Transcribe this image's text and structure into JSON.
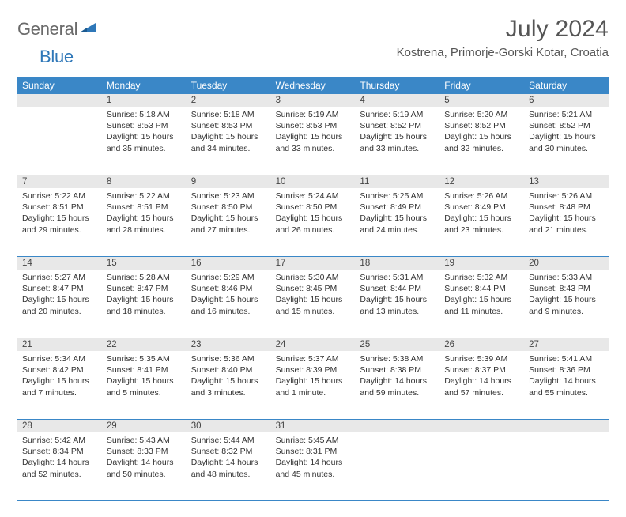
{
  "logo": {
    "textGeneral": "General",
    "textBlue": "Blue"
  },
  "title": "July 2024",
  "location": "Kostrena, Primorje-Gorski Kotar, Croatia",
  "colors": {
    "headerBg": "#3a87c7",
    "headerText": "#ffffff",
    "daynumBg": "#e8e8e8",
    "bodyText": "#333333",
    "titleText": "#555555",
    "logoGray": "#6a6a6a",
    "logoBlue": "#2e77b8",
    "weekBorder": "#3a87c7"
  },
  "dayNames": [
    "Sunday",
    "Monday",
    "Tuesday",
    "Wednesday",
    "Thursday",
    "Friday",
    "Saturday"
  ],
  "weeks": [
    {
      "nums": [
        "",
        "1",
        "2",
        "3",
        "4",
        "5",
        "6"
      ],
      "cells": [
        {
          "sunrise": "",
          "sunset": "",
          "daylight1": "",
          "daylight2": ""
        },
        {
          "sunrise": "Sunrise: 5:18 AM",
          "sunset": "Sunset: 8:53 PM",
          "daylight1": "Daylight: 15 hours",
          "daylight2": "and 35 minutes."
        },
        {
          "sunrise": "Sunrise: 5:18 AM",
          "sunset": "Sunset: 8:53 PM",
          "daylight1": "Daylight: 15 hours",
          "daylight2": "and 34 minutes."
        },
        {
          "sunrise": "Sunrise: 5:19 AM",
          "sunset": "Sunset: 8:53 PM",
          "daylight1": "Daylight: 15 hours",
          "daylight2": "and 33 minutes."
        },
        {
          "sunrise": "Sunrise: 5:19 AM",
          "sunset": "Sunset: 8:52 PM",
          "daylight1": "Daylight: 15 hours",
          "daylight2": "and 33 minutes."
        },
        {
          "sunrise": "Sunrise: 5:20 AM",
          "sunset": "Sunset: 8:52 PM",
          "daylight1": "Daylight: 15 hours",
          "daylight2": "and 32 minutes."
        },
        {
          "sunrise": "Sunrise: 5:21 AM",
          "sunset": "Sunset: 8:52 PM",
          "daylight1": "Daylight: 15 hours",
          "daylight2": "and 30 minutes."
        }
      ]
    },
    {
      "nums": [
        "7",
        "8",
        "9",
        "10",
        "11",
        "12",
        "13"
      ],
      "cells": [
        {
          "sunrise": "Sunrise: 5:22 AM",
          "sunset": "Sunset: 8:51 PM",
          "daylight1": "Daylight: 15 hours",
          "daylight2": "and 29 minutes."
        },
        {
          "sunrise": "Sunrise: 5:22 AM",
          "sunset": "Sunset: 8:51 PM",
          "daylight1": "Daylight: 15 hours",
          "daylight2": "and 28 minutes."
        },
        {
          "sunrise": "Sunrise: 5:23 AM",
          "sunset": "Sunset: 8:50 PM",
          "daylight1": "Daylight: 15 hours",
          "daylight2": "and 27 minutes."
        },
        {
          "sunrise": "Sunrise: 5:24 AM",
          "sunset": "Sunset: 8:50 PM",
          "daylight1": "Daylight: 15 hours",
          "daylight2": "and 26 minutes."
        },
        {
          "sunrise": "Sunrise: 5:25 AM",
          "sunset": "Sunset: 8:49 PM",
          "daylight1": "Daylight: 15 hours",
          "daylight2": "and 24 minutes."
        },
        {
          "sunrise": "Sunrise: 5:26 AM",
          "sunset": "Sunset: 8:49 PM",
          "daylight1": "Daylight: 15 hours",
          "daylight2": "and 23 minutes."
        },
        {
          "sunrise": "Sunrise: 5:26 AM",
          "sunset": "Sunset: 8:48 PM",
          "daylight1": "Daylight: 15 hours",
          "daylight2": "and 21 minutes."
        }
      ]
    },
    {
      "nums": [
        "14",
        "15",
        "16",
        "17",
        "18",
        "19",
        "20"
      ],
      "cells": [
        {
          "sunrise": "Sunrise: 5:27 AM",
          "sunset": "Sunset: 8:47 PM",
          "daylight1": "Daylight: 15 hours",
          "daylight2": "and 20 minutes."
        },
        {
          "sunrise": "Sunrise: 5:28 AM",
          "sunset": "Sunset: 8:47 PM",
          "daylight1": "Daylight: 15 hours",
          "daylight2": "and 18 minutes."
        },
        {
          "sunrise": "Sunrise: 5:29 AM",
          "sunset": "Sunset: 8:46 PM",
          "daylight1": "Daylight: 15 hours",
          "daylight2": "and 16 minutes."
        },
        {
          "sunrise": "Sunrise: 5:30 AM",
          "sunset": "Sunset: 8:45 PM",
          "daylight1": "Daylight: 15 hours",
          "daylight2": "and 15 minutes."
        },
        {
          "sunrise": "Sunrise: 5:31 AM",
          "sunset": "Sunset: 8:44 PM",
          "daylight1": "Daylight: 15 hours",
          "daylight2": "and 13 minutes."
        },
        {
          "sunrise": "Sunrise: 5:32 AM",
          "sunset": "Sunset: 8:44 PM",
          "daylight1": "Daylight: 15 hours",
          "daylight2": "and 11 minutes."
        },
        {
          "sunrise": "Sunrise: 5:33 AM",
          "sunset": "Sunset: 8:43 PM",
          "daylight1": "Daylight: 15 hours",
          "daylight2": "and 9 minutes."
        }
      ]
    },
    {
      "nums": [
        "21",
        "22",
        "23",
        "24",
        "25",
        "26",
        "27"
      ],
      "cells": [
        {
          "sunrise": "Sunrise: 5:34 AM",
          "sunset": "Sunset: 8:42 PM",
          "daylight1": "Daylight: 15 hours",
          "daylight2": "and 7 minutes."
        },
        {
          "sunrise": "Sunrise: 5:35 AM",
          "sunset": "Sunset: 8:41 PM",
          "daylight1": "Daylight: 15 hours",
          "daylight2": "and 5 minutes."
        },
        {
          "sunrise": "Sunrise: 5:36 AM",
          "sunset": "Sunset: 8:40 PM",
          "daylight1": "Daylight: 15 hours",
          "daylight2": "and 3 minutes."
        },
        {
          "sunrise": "Sunrise: 5:37 AM",
          "sunset": "Sunset: 8:39 PM",
          "daylight1": "Daylight: 15 hours",
          "daylight2": "and 1 minute."
        },
        {
          "sunrise": "Sunrise: 5:38 AM",
          "sunset": "Sunset: 8:38 PM",
          "daylight1": "Daylight: 14 hours",
          "daylight2": "and 59 minutes."
        },
        {
          "sunrise": "Sunrise: 5:39 AM",
          "sunset": "Sunset: 8:37 PM",
          "daylight1": "Daylight: 14 hours",
          "daylight2": "and 57 minutes."
        },
        {
          "sunrise": "Sunrise: 5:41 AM",
          "sunset": "Sunset: 8:36 PM",
          "daylight1": "Daylight: 14 hours",
          "daylight2": "and 55 minutes."
        }
      ]
    },
    {
      "nums": [
        "28",
        "29",
        "30",
        "31",
        "",
        "",
        ""
      ],
      "cells": [
        {
          "sunrise": "Sunrise: 5:42 AM",
          "sunset": "Sunset: 8:34 PM",
          "daylight1": "Daylight: 14 hours",
          "daylight2": "and 52 minutes."
        },
        {
          "sunrise": "Sunrise: 5:43 AM",
          "sunset": "Sunset: 8:33 PM",
          "daylight1": "Daylight: 14 hours",
          "daylight2": "and 50 minutes."
        },
        {
          "sunrise": "Sunrise: 5:44 AM",
          "sunset": "Sunset: 8:32 PM",
          "daylight1": "Daylight: 14 hours",
          "daylight2": "and 48 minutes."
        },
        {
          "sunrise": "Sunrise: 5:45 AM",
          "sunset": "Sunset: 8:31 PM",
          "daylight1": "Daylight: 14 hours",
          "daylight2": "and 45 minutes."
        },
        {
          "sunrise": "",
          "sunset": "",
          "daylight1": "",
          "daylight2": ""
        },
        {
          "sunrise": "",
          "sunset": "",
          "daylight1": "",
          "daylight2": ""
        },
        {
          "sunrise": "",
          "sunset": "",
          "daylight1": "",
          "daylight2": ""
        }
      ]
    }
  ]
}
